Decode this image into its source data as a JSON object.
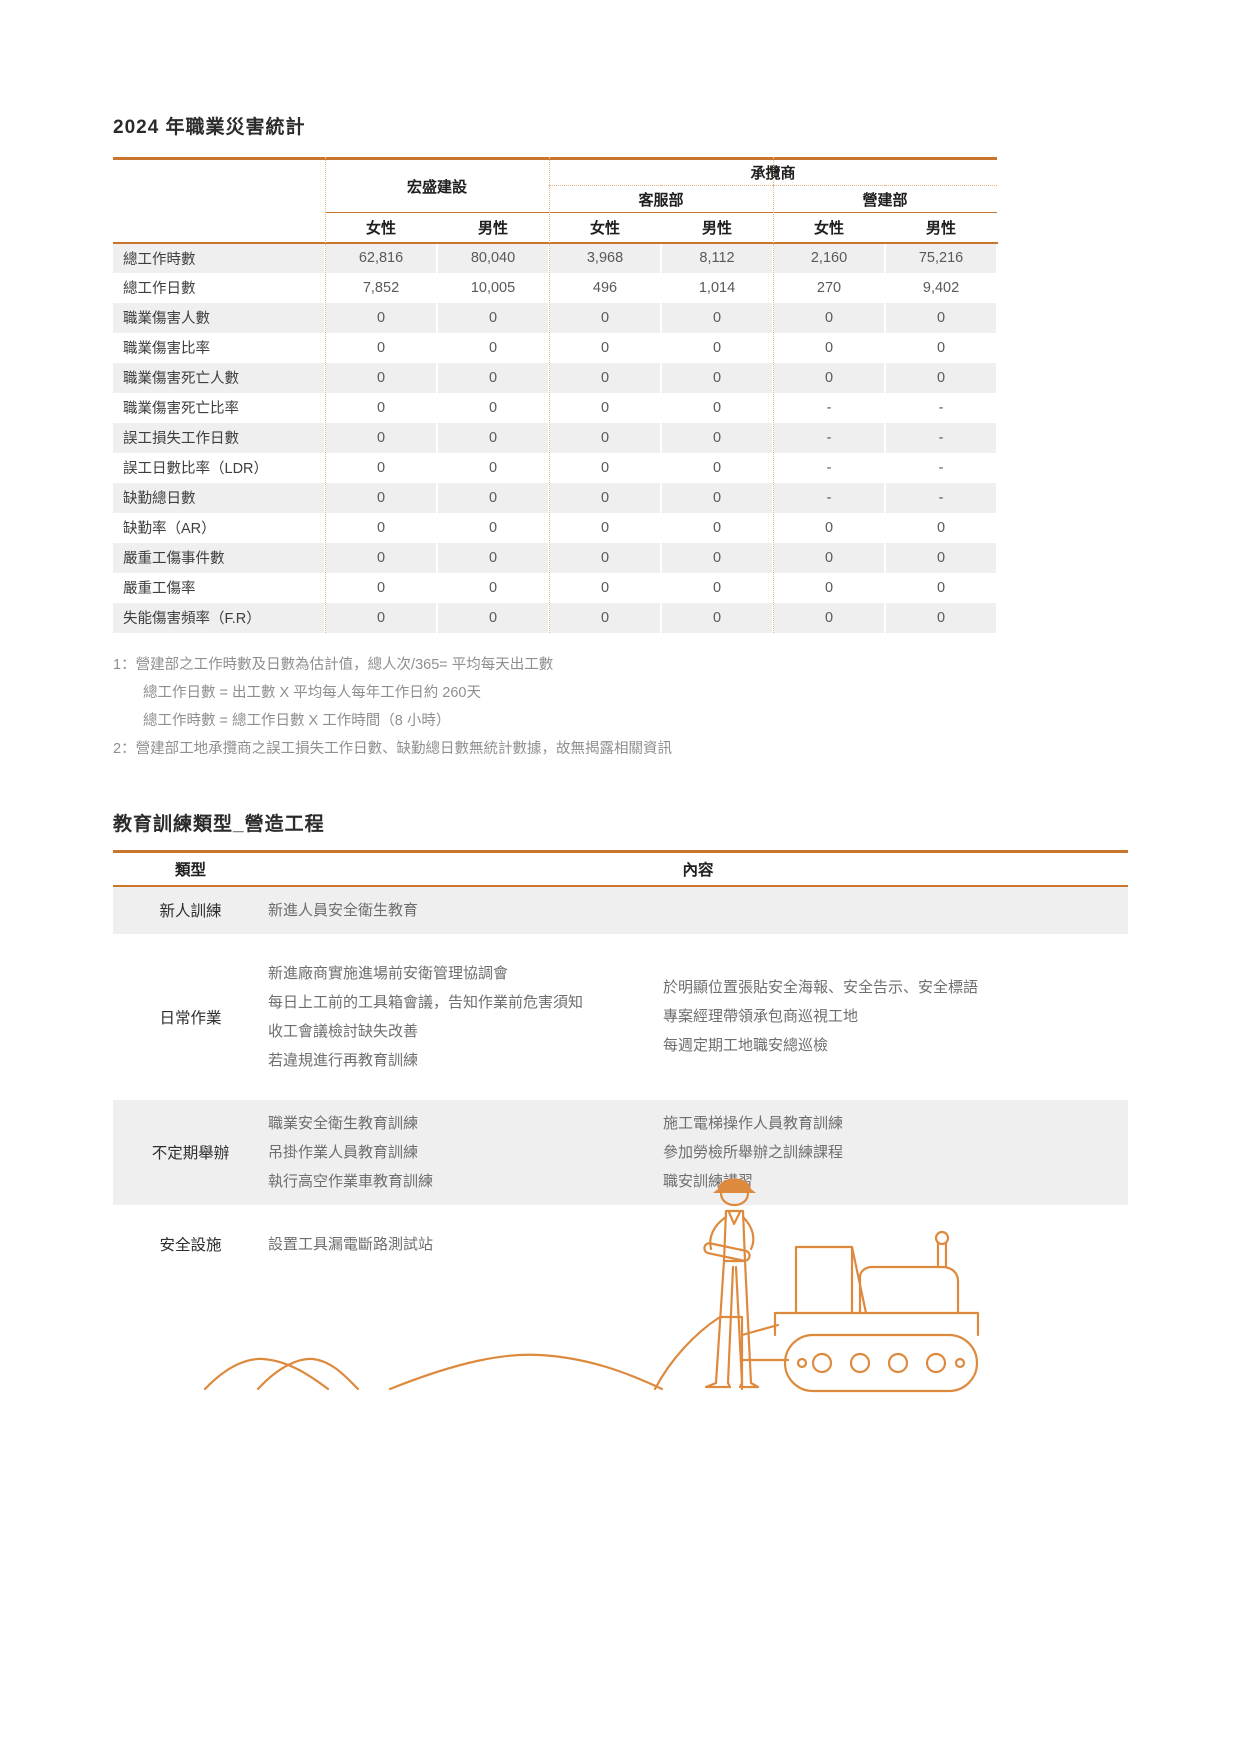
{
  "colors": {
    "accent": "#C9752C",
    "accent_light": "#EBB487",
    "zebra": "#EFEFEF",
    "text_dark": "#2B2B2B",
    "text_mid": "#595959",
    "text_note": "#8F8F8F",
    "line_art": "#DE8A3E"
  },
  "section1": {
    "title": "2024 年職業災害統計",
    "table": {
      "groups": {
        "company": "宏盛建設",
        "contractor": "承攬商",
        "dept_service": "客服部",
        "dept_construction": "營建部"
      },
      "genders": [
        "女性",
        "男性",
        "女性",
        "男性",
        "女性",
        "男性"
      ],
      "rows": [
        {
          "label": "總工作時數",
          "values": [
            "62,816",
            "80,040",
            "3,968",
            "8,112",
            "2,160",
            "75,216"
          ]
        },
        {
          "label": "總工作日數",
          "values": [
            "7,852",
            "10,005",
            "496",
            "1,014",
            "270",
            "9,402"
          ]
        },
        {
          "label": "職業傷害人數",
          "values": [
            "0",
            "0",
            "0",
            "0",
            "0",
            "0"
          ]
        },
        {
          "label": "職業傷害比率",
          "values": [
            "0",
            "0",
            "0",
            "0",
            "0",
            "0"
          ]
        },
        {
          "label": "職業傷害死亡人數",
          "values": [
            "0",
            "0",
            "0",
            "0",
            "0",
            "0"
          ]
        },
        {
          "label": "職業傷害死亡比率",
          "values": [
            "0",
            "0",
            "0",
            "0",
            "-",
            "-"
          ]
        },
        {
          "label": "誤工損失工作日數",
          "values": [
            "0",
            "0",
            "0",
            "0",
            "-",
            "-"
          ]
        },
        {
          "label": "誤工日數比率（LDR）",
          "values": [
            "0",
            "0",
            "0",
            "0",
            "-",
            "-"
          ]
        },
        {
          "label": "缺勤總日數",
          "values": [
            "0",
            "0",
            "0",
            "0",
            "-",
            "-"
          ]
        },
        {
          "label": "缺勤率（AR）",
          "values": [
            "0",
            "0",
            "0",
            "0",
            "0",
            "0"
          ]
        },
        {
          "label": "嚴重工傷事件數",
          "values": [
            "0",
            "0",
            "0",
            "0",
            "0",
            "0"
          ]
        },
        {
          "label": "嚴重工傷率",
          "values": [
            "0",
            "0",
            "0",
            "0",
            "0",
            "0"
          ]
        },
        {
          "label": "失能傷害頻率（F.R）",
          "values": [
            "0",
            "0",
            "0",
            "0",
            "0",
            "0"
          ]
        }
      ],
      "footnotes": [
        {
          "text": "1：營建部之工作時數及日數為估計值，總人次/365= 平均每天出工數",
          "indent": false
        },
        {
          "text": "總工作日數 = 出工數 X 平均每人每年工作日約 260天",
          "indent": true
        },
        {
          "text": "總工作時數 = 總工作日數 X 工作時間（8 小時）",
          "indent": true
        },
        {
          "text": "2：營建部工地承攬商之誤工損失工作日數、缺勤總日數無統計數據，故無揭露相關資訊",
          "indent": false
        }
      ]
    }
  },
  "section2": {
    "title": "教育訓練類型_營造工程",
    "headers": {
      "type": "類型",
      "content": "內容"
    },
    "rows": [
      {
        "type": "新人訓練",
        "shaded": true,
        "left": [
          "新進人員安全衛生教育"
        ],
        "right": []
      },
      {
        "type": "日常作業",
        "shaded": false,
        "left": [
          "新進廠商實施進場前安衛管理協調會",
          "每日上工前的工具箱會議，告知作業前危害須知",
          "收工會議檢討缺失改善",
          "若違規進行再教育訓練"
        ],
        "right": [
          "於明顯位置張貼安全海報、安全告示、安全標語",
          "專案經理帶領承包商巡視工地",
          "每週定期工地職安總巡檢"
        ]
      },
      {
        "type": "不定期舉辦",
        "shaded": true,
        "left": [
          "職業安全衛生教育訓練",
          "吊掛作業人員教育訓練",
          "執行高空作業車教育訓練"
        ],
        "right": [
          "施工電梯操作人員教育訓練",
          "參加勞檢所舉辦之訓練課程",
          "職安訓練講習"
        ]
      },
      {
        "type": "安全設施",
        "shaded": false,
        "left": [
          "設置工具漏電斷路測試站"
        ],
        "right": []
      }
    ]
  },
  "illustration": {
    "name": "construction-worker-and-bulldozer-line-art"
  }
}
